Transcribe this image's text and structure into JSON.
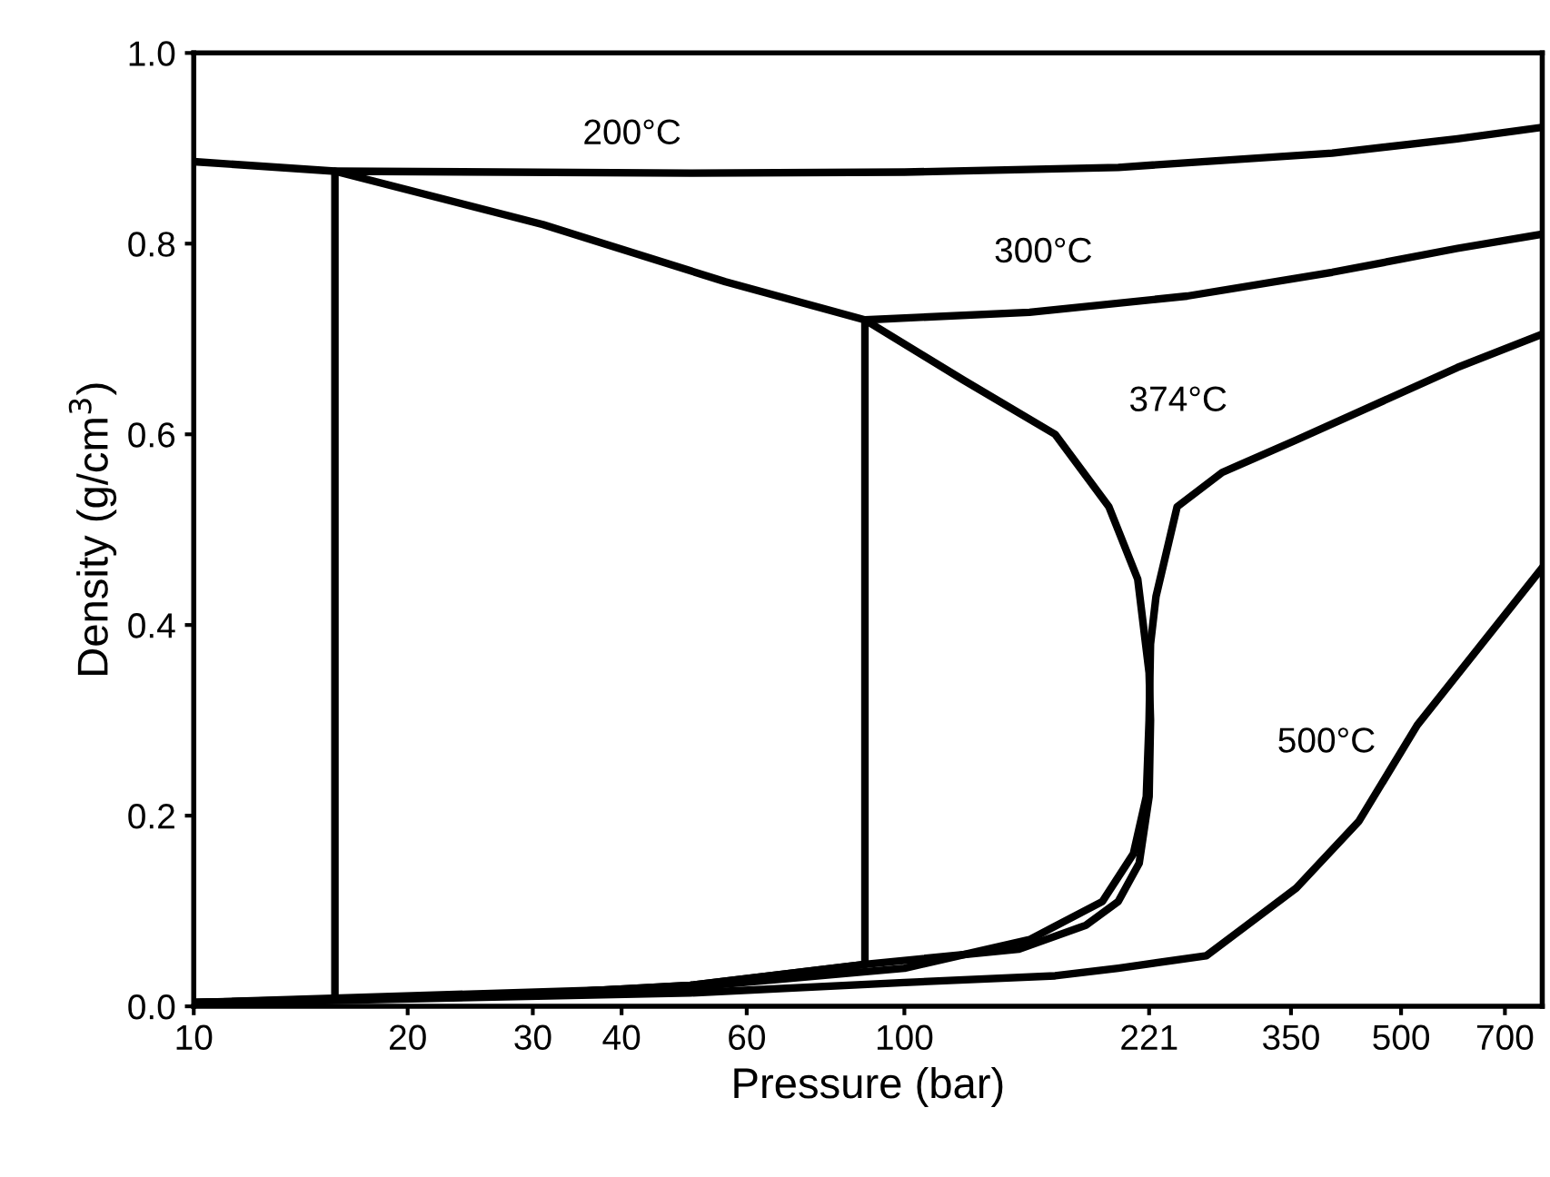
{
  "chart_data": {
    "type": "line",
    "xlabel": "Pressure (bar)",
    "ylabel": "Density (g/cm$^{3}$)",
    "log": "x",
    "grid": false,
    "marker": "none",
    "line_style": "solid",
    "xlim": [
      10,
      790
    ],
    "xticks": [
      10,
      20,
      30,
      40,
      60,
      100,
      221,
      350,
      500,
      700
    ],
    "ylim": [
      0,
      1
    ],
    "yticks": [
      {
        "value": 0,
        "label": "0.0"
      },
      {
        "value": 0.2,
        "label": "0.2"
      },
      {
        "value": 0.4,
        "label": "0.4"
      },
      {
        "value": 0.6,
        "label": "0.6"
      },
      {
        "value": 0.8,
        "label": "0.8"
      },
      {
        "value": 1,
        "label": "1.0"
      }
    ],
    "series": [
      {
        "color": "#000000",
        "x": [
          10,
          15.8,
          31,
          56,
          88,
          121,
          163,
          194,
          213,
          221,
          222,
          221,
          214,
          200,
          180,
          145,
          88,
          50,
          30,
          15.8,
          10
        ],
        "values": [
          0.886,
          0.876,
          0.82,
          0.76,
          0.72,
          0.657,
          0.6,
          0.524,
          0.448,
          0.35,
          0.3,
          0.22,
          0.15,
          0.11,
          0.085,
          0.06,
          0.044,
          0.022,
          0.013,
          0.007,
          0.004
        ]
      },
      {
        "color": "#000000",
        "x": [
          10,
          15.8,
          15.8,
          50,
          100,
          200,
          400,
          600,
          790
        ],
        "values": [
          0.004,
          0.007,
          0.876,
          0.874,
          0.875,
          0.88,
          0.895,
          0.91,
          0.922
        ]
      },
      {
        "color": "#000000",
        "x": [
          10,
          30,
          50,
          88,
          88,
          150,
          250,
          400,
          600,
          790
        ],
        "values": [
          0.004,
          0.013,
          0.022,
          0.044,
          0.72,
          0.728,
          0.745,
          0.77,
          0.795,
          0.81
        ]
      },
      {
        "color": "#000000",
        "x": [
          10,
          50,
          100,
          150,
          190,
          210,
          219,
          221,
          222,
          226,
          242,
          280,
          356,
          600,
          790
        ],
        "values": [
          0.004,
          0.02,
          0.04,
          0.07,
          0.11,
          0.16,
          0.22,
          0.3,
          0.38,
          0.43,
          0.524,
          0.56,
          0.594,
          0.67,
          0.705
        ]
      },
      {
        "color": "#000000",
        "x": [
          10,
          50,
          100,
          163,
          200,
          266,
          356,
          436,
          527,
          790
        ],
        "values": [
          0.003,
          0.014,
          0.025,
          0.032,
          0.04,
          0.053,
          0.124,
          0.194,
          0.295,
          0.46
        ]
      }
    ],
    "annotations": [
      "200°C",
      "300°C",
      "374°C",
      "500°C"
    ]
  }
}
